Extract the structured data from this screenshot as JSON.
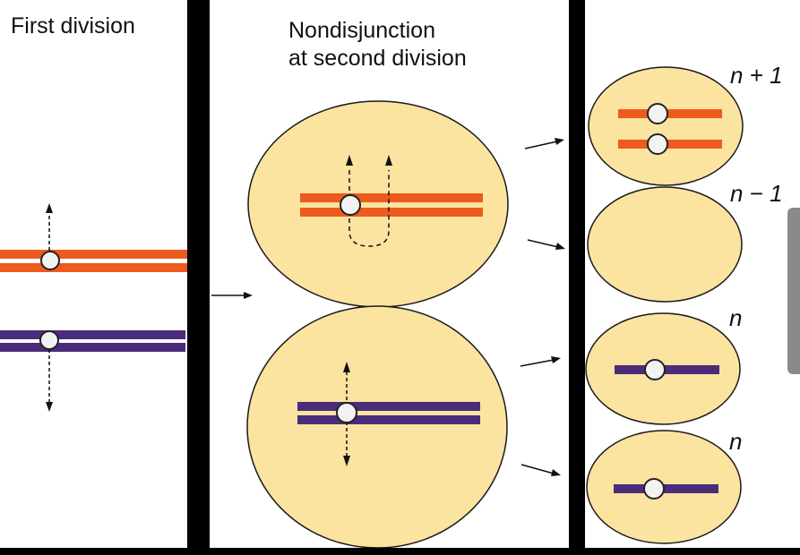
{
  "panels": {
    "first": {
      "title": "First division"
    },
    "second": {
      "title_line1": "Nondisjunction",
      "title_line2": "at second division"
    },
    "gametes": {
      "labels": [
        "n + 1",
        "n − 1",
        "n",
        "n"
      ]
    }
  },
  "colors": {
    "cell_fill": "#fbe3a0",
    "cell_stroke": "#1a1a1a",
    "chromosome_orange": "#ef5a1e",
    "chromosome_purple": "#4a2c7a",
    "centromere_fill": "#f2f2f2",
    "background": "#000000",
    "panel": "#ffffff"
  },
  "icons": {
    "arrow": "right-arrow-icon",
    "centromere": "circle-icon"
  }
}
